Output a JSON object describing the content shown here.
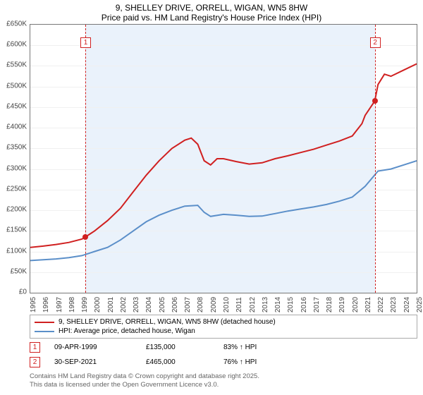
{
  "title_line1": "9, SHELLEY DRIVE, ORRELL, WIGAN, WN5 8HW",
  "title_line2": "Price paid vs. HM Land Registry's House Price Index (HPI)",
  "chart": {
    "type": "line",
    "background_color": "#ffffff",
    "shade_color": "#eaf2fb",
    "grid_color": "#f0f0f0",
    "axis_color": "#777777",
    "x_min": 1995,
    "x_max": 2025,
    "x_ticks": [
      1995,
      1996,
      1997,
      1998,
      1999,
      2000,
      2001,
      2002,
      2003,
      2004,
      2005,
      2006,
      2007,
      2008,
      2009,
      2010,
      2011,
      2012,
      2013,
      2014,
      2015,
      2016,
      2017,
      2018,
      2019,
      2020,
      2021,
      2022,
      2023,
      2024,
      2025
    ],
    "y_min": 0,
    "y_max": 650,
    "y_ticks": [
      0,
      50,
      100,
      150,
      200,
      250,
      300,
      350,
      400,
      450,
      500,
      550,
      600,
      650
    ],
    "y_tick_labels": [
      "£0",
      "£50K",
      "£100K",
      "£150K",
      "£200K",
      "£250K",
      "£300K",
      "£350K",
      "£400K",
      "£450K",
      "£500K",
      "£550K",
      "£600K",
      "£650K"
    ],
    "shade_start": 1999.27,
    "shade_end": 2021.75,
    "series": [
      {
        "name": "price_paid",
        "label": "9, SHELLEY DRIVE, ORRELL, WIGAN, WN5 8HW (detached house)",
        "color": "#d02020",
        "line_width": 2,
        "x": [
          1995,
          1996,
          1997,
          1998,
          1999,
          1999.27,
          2000,
          2001,
          2002,
          2003,
          2004,
          2005,
          2006,
          2007,
          2007.5,
          2008,
          2008.5,
          2009,
          2009.5,
          2010,
          2011,
          2012,
          2013,
          2014,
          2015,
          2016,
          2017,
          2018,
          2019,
          2020,
          2020.75,
          2021,
          2021.75,
          2022,
          2022.5,
          2023,
          2024,
          2025
        ],
        "y": [
          110,
          113,
          117,
          122,
          130,
          135,
          150,
          175,
          205,
          245,
          285,
          320,
          350,
          370,
          375,
          360,
          320,
          310,
          325,
          325,
          318,
          312,
          315,
          325,
          332,
          340,
          348,
          358,
          368,
          380,
          410,
          430,
          465,
          505,
          530,
          525,
          540,
          555
        ]
      },
      {
        "name": "hpi",
        "label": "HPI: Average price, detached house, Wigan",
        "color": "#5b8fc9",
        "line_width": 2,
        "x": [
          1995,
          1996,
          1997,
          1998,
          1999,
          2000,
          2001,
          2002,
          2003,
          2004,
          2005,
          2006,
          2007,
          2008,
          2008.5,
          2009,
          2010,
          2011,
          2012,
          2013,
          2014,
          2015,
          2016,
          2017,
          2018,
          2019,
          2020,
          2021,
          2022,
          2023,
          2024,
          2025
        ],
        "y": [
          78,
          80,
          82,
          85,
          90,
          100,
          110,
          128,
          150,
          172,
          188,
          200,
          210,
          212,
          195,
          185,
          190,
          188,
          185,
          186,
          192,
          198,
          203,
          208,
          214,
          222,
          232,
          258,
          295,
          300,
          310,
          320
        ]
      }
    ],
    "markers": [
      {
        "n": "1",
        "x": 1999.27,
        "y": 135
      },
      {
        "n": "2",
        "x": 2021.75,
        "y": 465
      }
    ]
  },
  "legend": [
    {
      "color": "#d02020",
      "label": "9, SHELLEY DRIVE, ORRELL, WIGAN, WN5 8HW (detached house)"
    },
    {
      "color": "#5b8fc9",
      "label": "HPI: Average price, detached house, Wigan"
    }
  ],
  "sales": [
    {
      "n": "1",
      "date": "09-APR-1999",
      "price": "£135,000",
      "delta": "83% ↑ HPI"
    },
    {
      "n": "2",
      "date": "30-SEP-2021",
      "price": "£465,000",
      "delta": "76% ↑ HPI"
    }
  ],
  "attrib_line1": "Contains HM Land Registry data © Crown copyright and database right 2025.",
  "attrib_line2": "This data is licensed under the Open Government Licence v3.0."
}
